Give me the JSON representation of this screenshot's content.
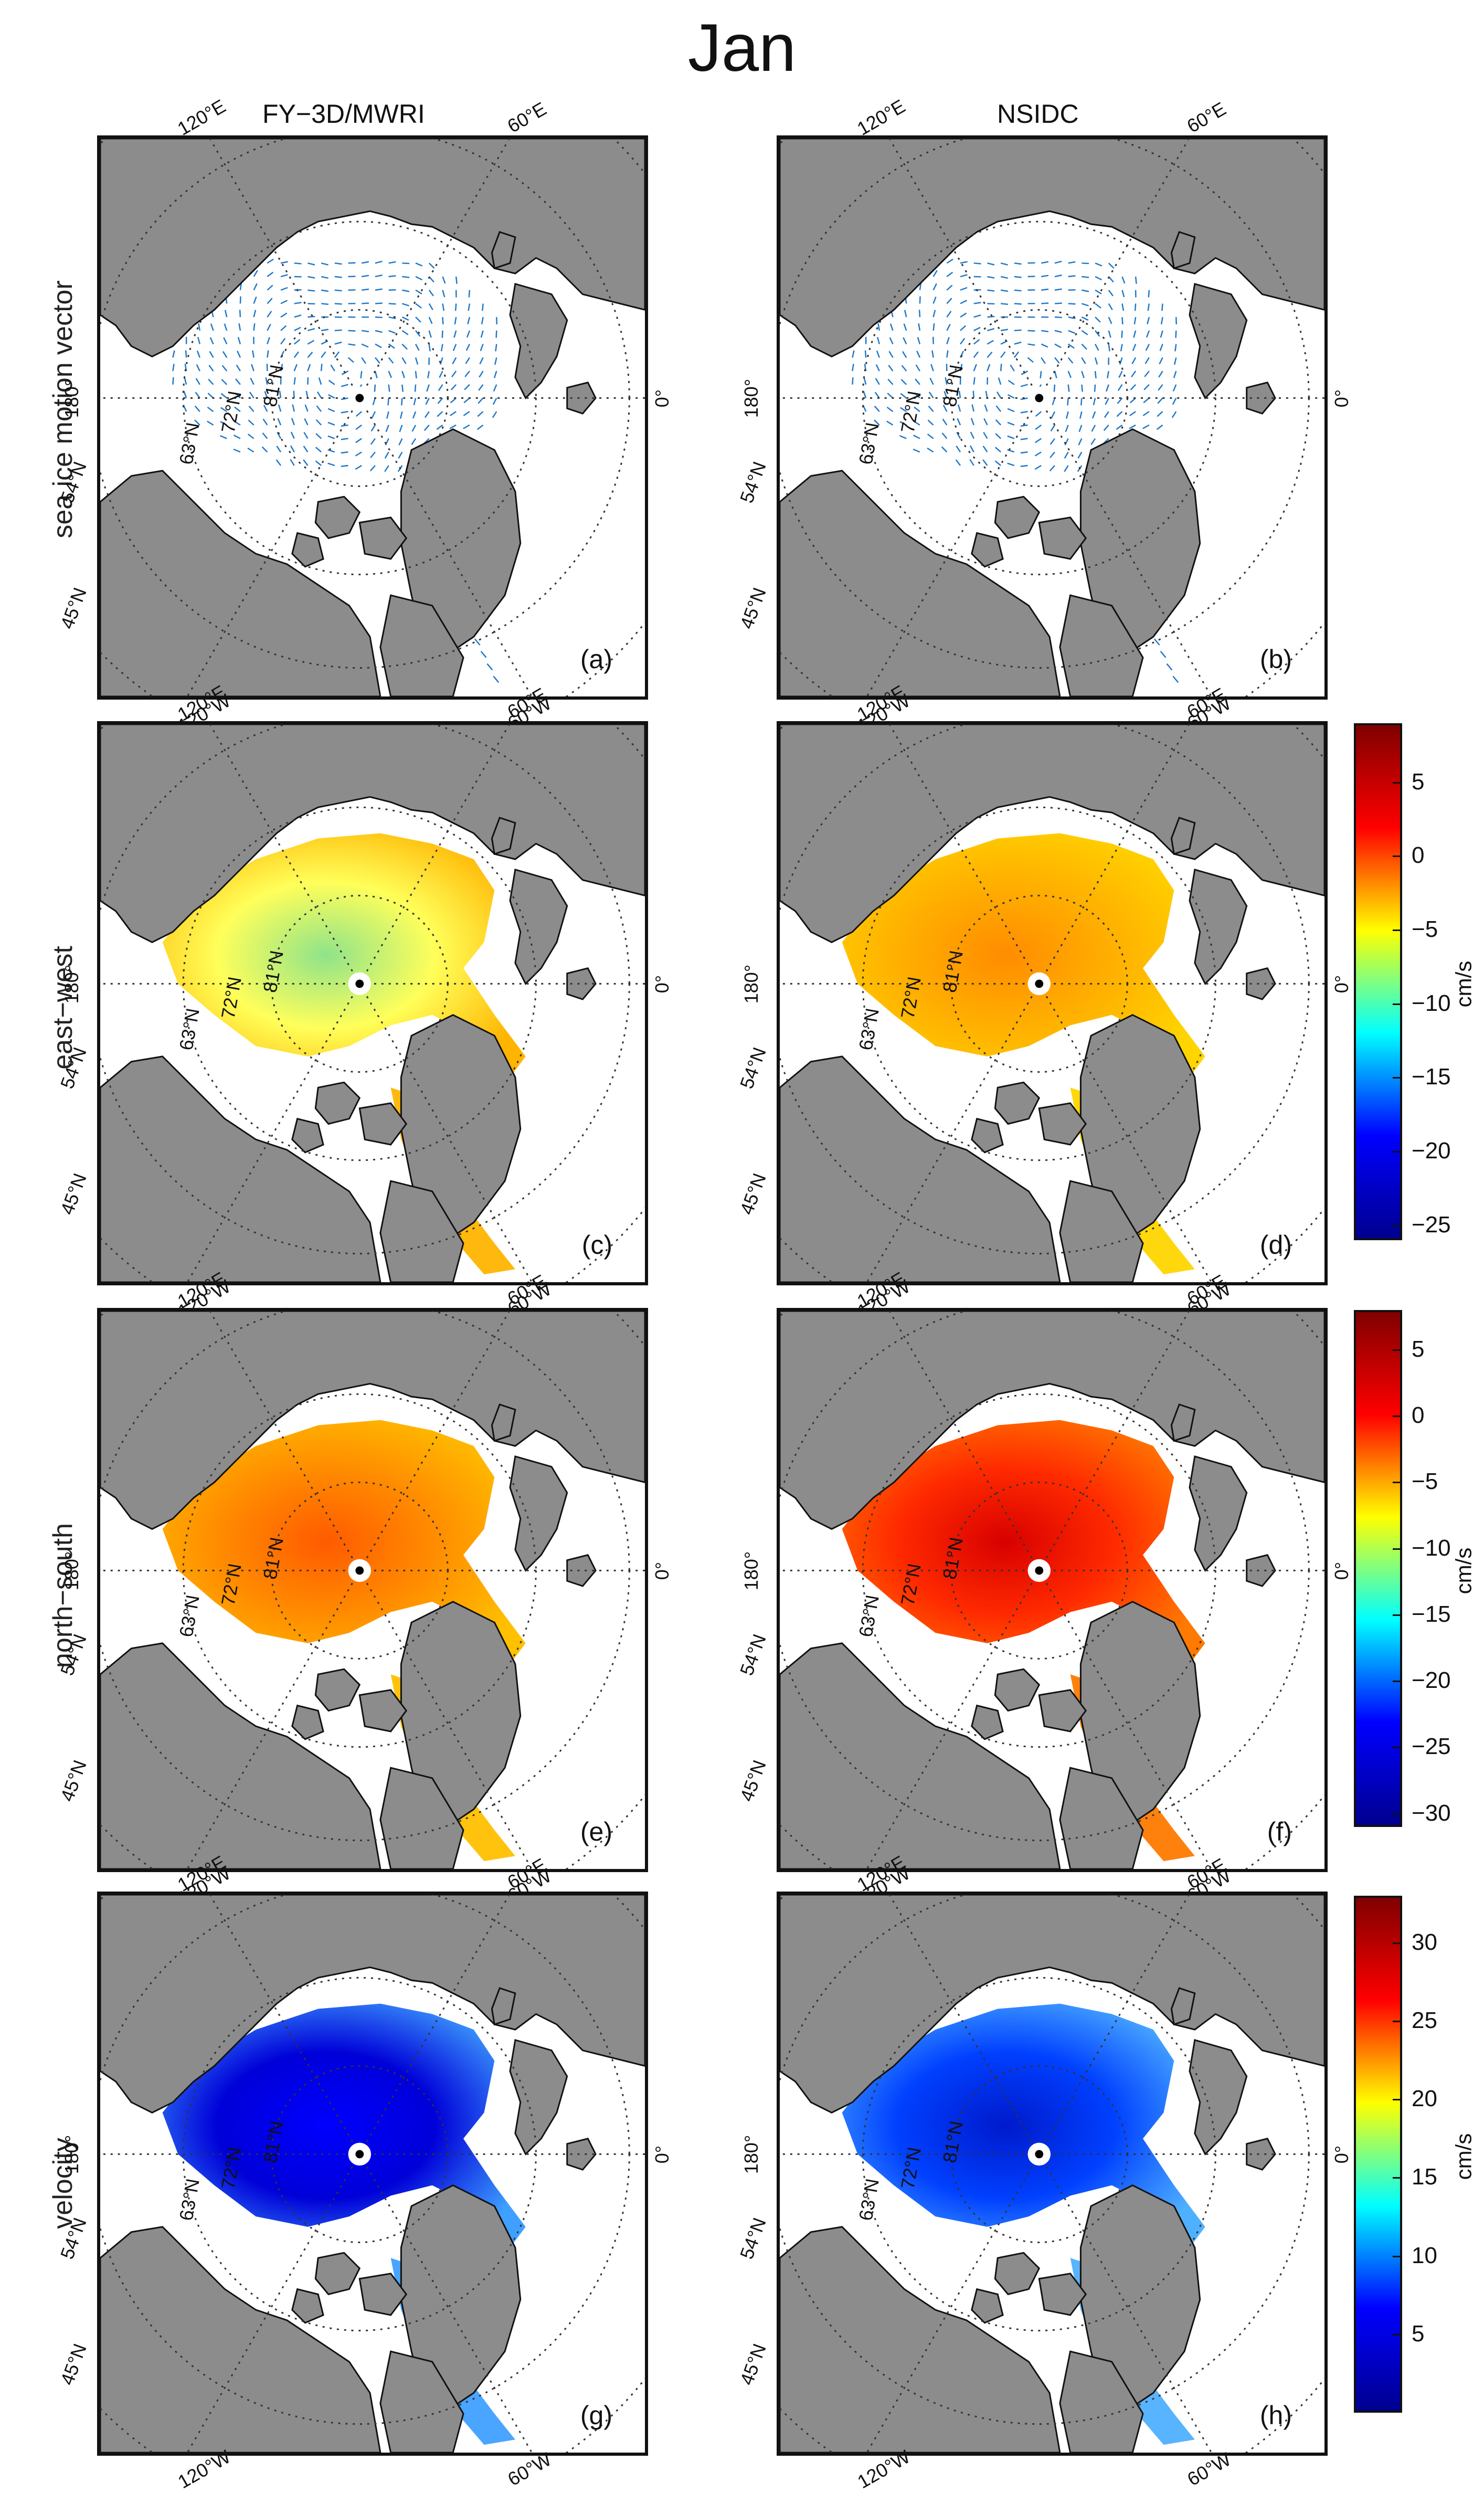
{
  "title": "Jan",
  "columns": [
    "FY−3D/MWRI",
    "NSIDC"
  ],
  "rows": [
    "sea ice motion vector",
    "east−west",
    "north−south",
    "velocity"
  ],
  "panel_letters": [
    "(a)",
    "(b)",
    "(c)",
    "(d)",
    "(e)",
    "(f)",
    "(g)",
    "(h)"
  ],
  "graticule_labels": {
    "top_left": "120°E",
    "top_right": "60°E",
    "left": "180°",
    "right": "0°",
    "bottom_left": "120°W",
    "bottom_right": "60°W",
    "lat_1": "54°N",
    "lat_2": "45°N",
    "lat_inner_1": "63°N",
    "lat_inner_2": "72°N",
    "lat_inner_3": "81°N"
  },
  "colorbars": [
    {
      "row": "east−west",
      "unit": "cm/s",
      "ticks": [
        "5",
        "0",
        "−5",
        "−10",
        "−15",
        "−20",
        "−25"
      ],
      "min": -26,
      "max": 9
    },
    {
      "row": "north−south",
      "unit": "cm/s",
      "ticks": [
        "5",
        "0",
        "−5",
        "−10",
        "−15",
        "−20",
        "−25",
        "−30"
      ],
      "min": -31,
      "max": 8
    },
    {
      "row": "velocity",
      "unit": "cm/s",
      "ticks": [
        "30",
        "25",
        "20",
        "15",
        "10",
        "5"
      ],
      "min": 0,
      "max": 33
    }
  ],
  "colors": {
    "land": "#8c8c8c",
    "ocean": "#ffffff",
    "vector": "#1f78c8",
    "jet": [
      "#00008f",
      "#0000ff",
      "#00ffff",
      "#ffff00",
      "#ff0000",
      "#800000"
    ]
  }
}
